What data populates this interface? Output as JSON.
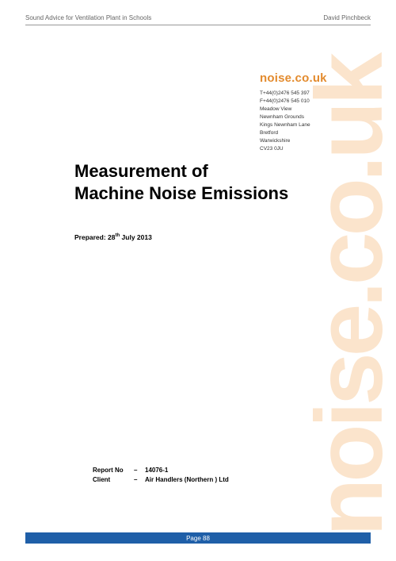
{
  "header": {
    "left": "Sound Advice for Ventilation Plant in Schools",
    "right": "David Pinchbeck"
  },
  "watermark": {
    "text": "noise.co.uk",
    "color": "#fbe4cc",
    "fontsize": 120
  },
  "brand": {
    "name": "noise.co.uk",
    "name_color": "#e38b2e",
    "details": [
      "T+44(0)2476 545 397",
      "F+44(0)2476 545 010",
      "Meadow View",
      "Newnham Grounds",
      "Kings Newnham Lane",
      "Bretford",
      "Warwickshire",
      "CV23 0JU"
    ]
  },
  "title": {
    "line1": "Measurement of",
    "line2": "Machine Noise Emissions"
  },
  "prepared": {
    "prefix": "Prepared: 28",
    "ordinal": "th",
    "suffix": " July 2013"
  },
  "report": {
    "rows": [
      {
        "label": "Report No",
        "value": "14076-1"
      },
      {
        "label": "Client",
        "value": "Air Handlers (Northern ) Ltd"
      }
    ]
  },
  "footer": {
    "text": "Page 88",
    "background_color": "#1f5fa8",
    "text_color": "#ffffff"
  }
}
